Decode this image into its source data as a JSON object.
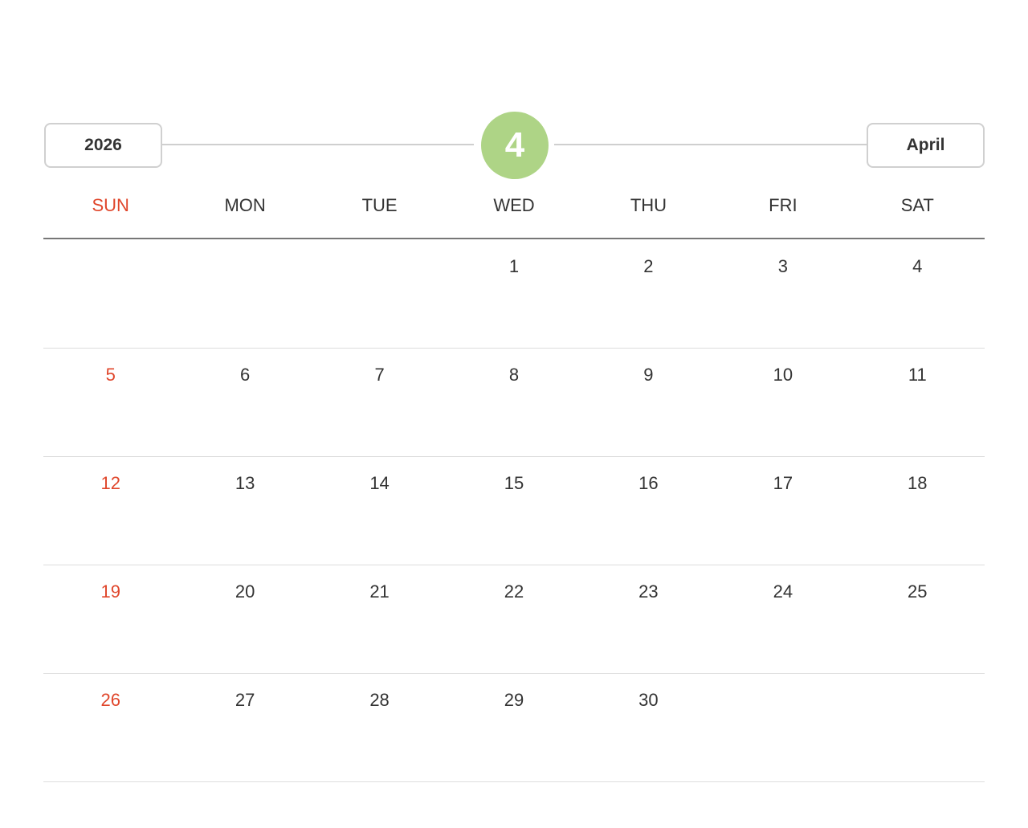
{
  "header": {
    "year": "2026",
    "month_number": "4",
    "month_name": "April",
    "accent_color": "#aed486",
    "weekend_color": "#e0462b"
  },
  "weekdays": [
    "SUN",
    "MON",
    "TUE",
    "WED",
    "THU",
    "FRI",
    "SAT"
  ],
  "weeks": [
    [
      null,
      null,
      null,
      "1",
      "2",
      "3",
      "4"
    ],
    [
      "5",
      "6",
      "7",
      "8",
      "9",
      "10",
      "11"
    ],
    [
      "12",
      "13",
      "14",
      "15",
      "16",
      "17",
      "18"
    ],
    [
      "19",
      "20",
      "21",
      "22",
      "23",
      "24",
      "25"
    ],
    [
      "26",
      "27",
      "28",
      "29",
      "30",
      null,
      null
    ]
  ]
}
